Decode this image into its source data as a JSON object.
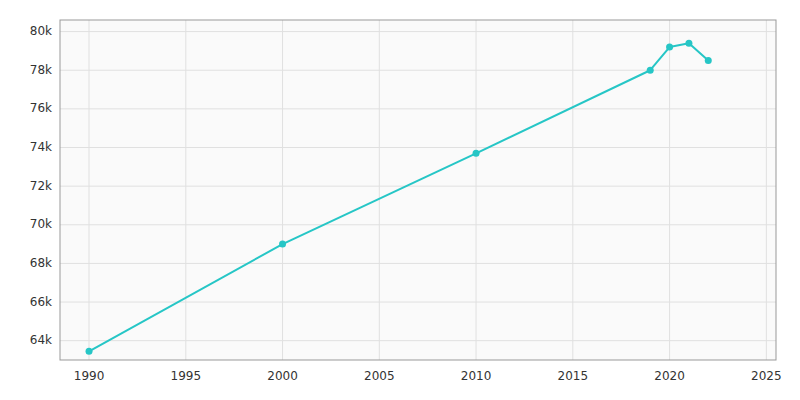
{
  "chart_data": {
    "type": "line",
    "x": [
      1990,
      2000,
      2010,
      2019,
      2020,
      2021,
      2022
    ],
    "values": [
      63450,
      69000,
      73700,
      78000,
      79200,
      79400,
      78500
    ],
    "color": "#26c6c6",
    "marker": "circle",
    "xlim": [
      1988.5,
      2025.5
    ],
    "ylim": [
      63000,
      80600
    ],
    "xticks": [
      1990,
      1995,
      2000,
      2005,
      2010,
      2015,
      2020,
      2025
    ],
    "yticks": [
      {
        "value": 64000,
        "label": "64k"
      },
      {
        "value": 66000,
        "label": "66k"
      },
      {
        "value": 68000,
        "label": "68k"
      },
      {
        "value": 70000,
        "label": "70k"
      },
      {
        "value": 72000,
        "label": "72k"
      },
      {
        "value": 74000,
        "label": "74k"
      },
      {
        "value": 76000,
        "label": "76k"
      },
      {
        "value": 78000,
        "label": "78k"
      },
      {
        "value": 80000,
        "label": "80k"
      }
    ],
    "grid": true
  }
}
